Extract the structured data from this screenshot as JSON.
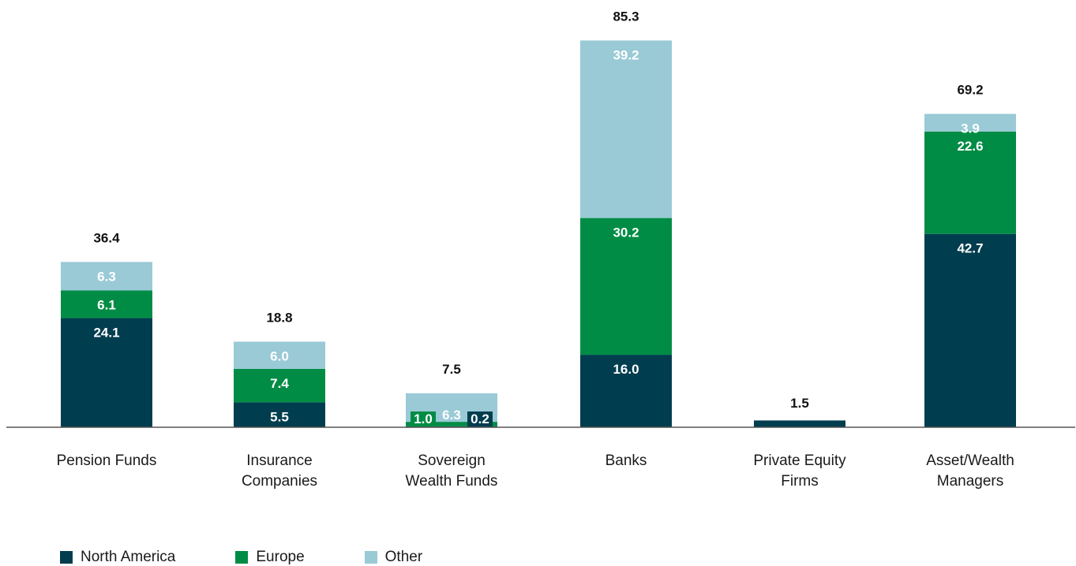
{
  "chart_data": {
    "type": "bar",
    "stacked": true,
    "categories": [
      [
        "Pension Funds"
      ],
      [
        "Insurance",
        "Companies"
      ],
      [
        "Sovereign",
        "Wealth Funds"
      ],
      [
        "Banks"
      ],
      [
        "Private Equity",
        "Firms"
      ],
      [
        "Asset/Wealth",
        "Managers"
      ]
    ],
    "series": [
      {
        "name": "North America",
        "color": "#003d4f",
        "values": [
          24.1,
          5.5,
          0.2,
          16.0,
          1.5,
          42.7
        ],
        "labels": [
          "24.1",
          "5.5",
          "0.2",
          "16.0",
          "",
          "42.7"
        ]
      },
      {
        "name": "Europe",
        "color": "#008c45",
        "values": [
          6.1,
          7.4,
          1.0,
          30.2,
          0,
          22.6
        ],
        "labels": [
          "6.1",
          "7.4",
          "1.0",
          "30.2",
          "",
          "22.6"
        ]
      },
      {
        "name": "Other",
        "color": "#99cad6",
        "values": [
          6.3,
          6.0,
          6.3,
          39.2,
          0,
          3.9
        ],
        "labels": [
          "6.3",
          "6.0",
          "6.3",
          "39.2",
          "",
          "3.9"
        ]
      }
    ],
    "totals": [
      "36.4",
      "18.8",
      "7.5",
      "85.3",
      "1.5",
      "69.2"
    ],
    "legend_position": "bottom-left",
    "grid": false
  }
}
